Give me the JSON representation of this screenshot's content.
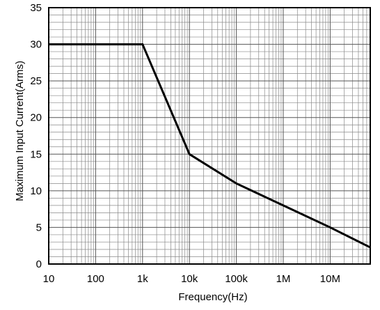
{
  "chart_data": {
    "type": "line",
    "title": "",
    "xlabel": "Frequency(Hz)",
    "ylabel": "Maximum  Input Current(Arms)",
    "x_scale": "log",
    "xlim": [
      10,
      70000000
    ],
    "ylim": [
      0,
      35
    ],
    "grid": true,
    "x_ticks": [
      {
        "value": 10,
        "label": "10"
      },
      {
        "value": 100,
        "label": "100"
      },
      {
        "value": 1000,
        "label": "1k"
      },
      {
        "value": 10000,
        "label": "10k"
      },
      {
        "value": 100000,
        "label": "100k"
      },
      {
        "value": 1000000,
        "label": "1M"
      },
      {
        "value": 10000000,
        "label": "10M"
      }
    ],
    "y_ticks": [
      {
        "value": 0,
        "label": "0"
      },
      {
        "value": 5,
        "label": "5"
      },
      {
        "value": 10,
        "label": "10"
      },
      {
        "value": 15,
        "label": "15"
      },
      {
        "value": 20,
        "label": "20"
      },
      {
        "value": 25,
        "label": "25"
      },
      {
        "value": 30,
        "label": "30"
      },
      {
        "value": 35,
        "label": "35"
      }
    ],
    "series": [
      {
        "color": "#000000",
        "x": [
          10,
          1000,
          10000,
          100000,
          1000000,
          10000000,
          70000000
        ],
        "y": [
          30,
          30,
          15,
          11,
          8,
          5,
          2.3
        ]
      }
    ]
  }
}
